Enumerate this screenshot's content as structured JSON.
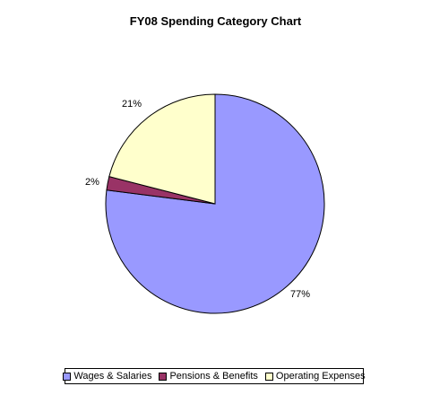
{
  "chart_data": {
    "type": "pie",
    "title": "FY08 Spending Category Chart",
    "slices": [
      {
        "name": "Wages & Salaries",
        "value": 77,
        "label": "77%",
        "color": "#9999ff"
      },
      {
        "name": "Pensions & Benefits",
        "value": 2,
        "label": "2%",
        "color": "#993366"
      },
      {
        "name": "Operating Expenses",
        "value": 21,
        "label": "21%",
        "color": "#ffffcc"
      }
    ],
    "legend_position": "bottom"
  }
}
